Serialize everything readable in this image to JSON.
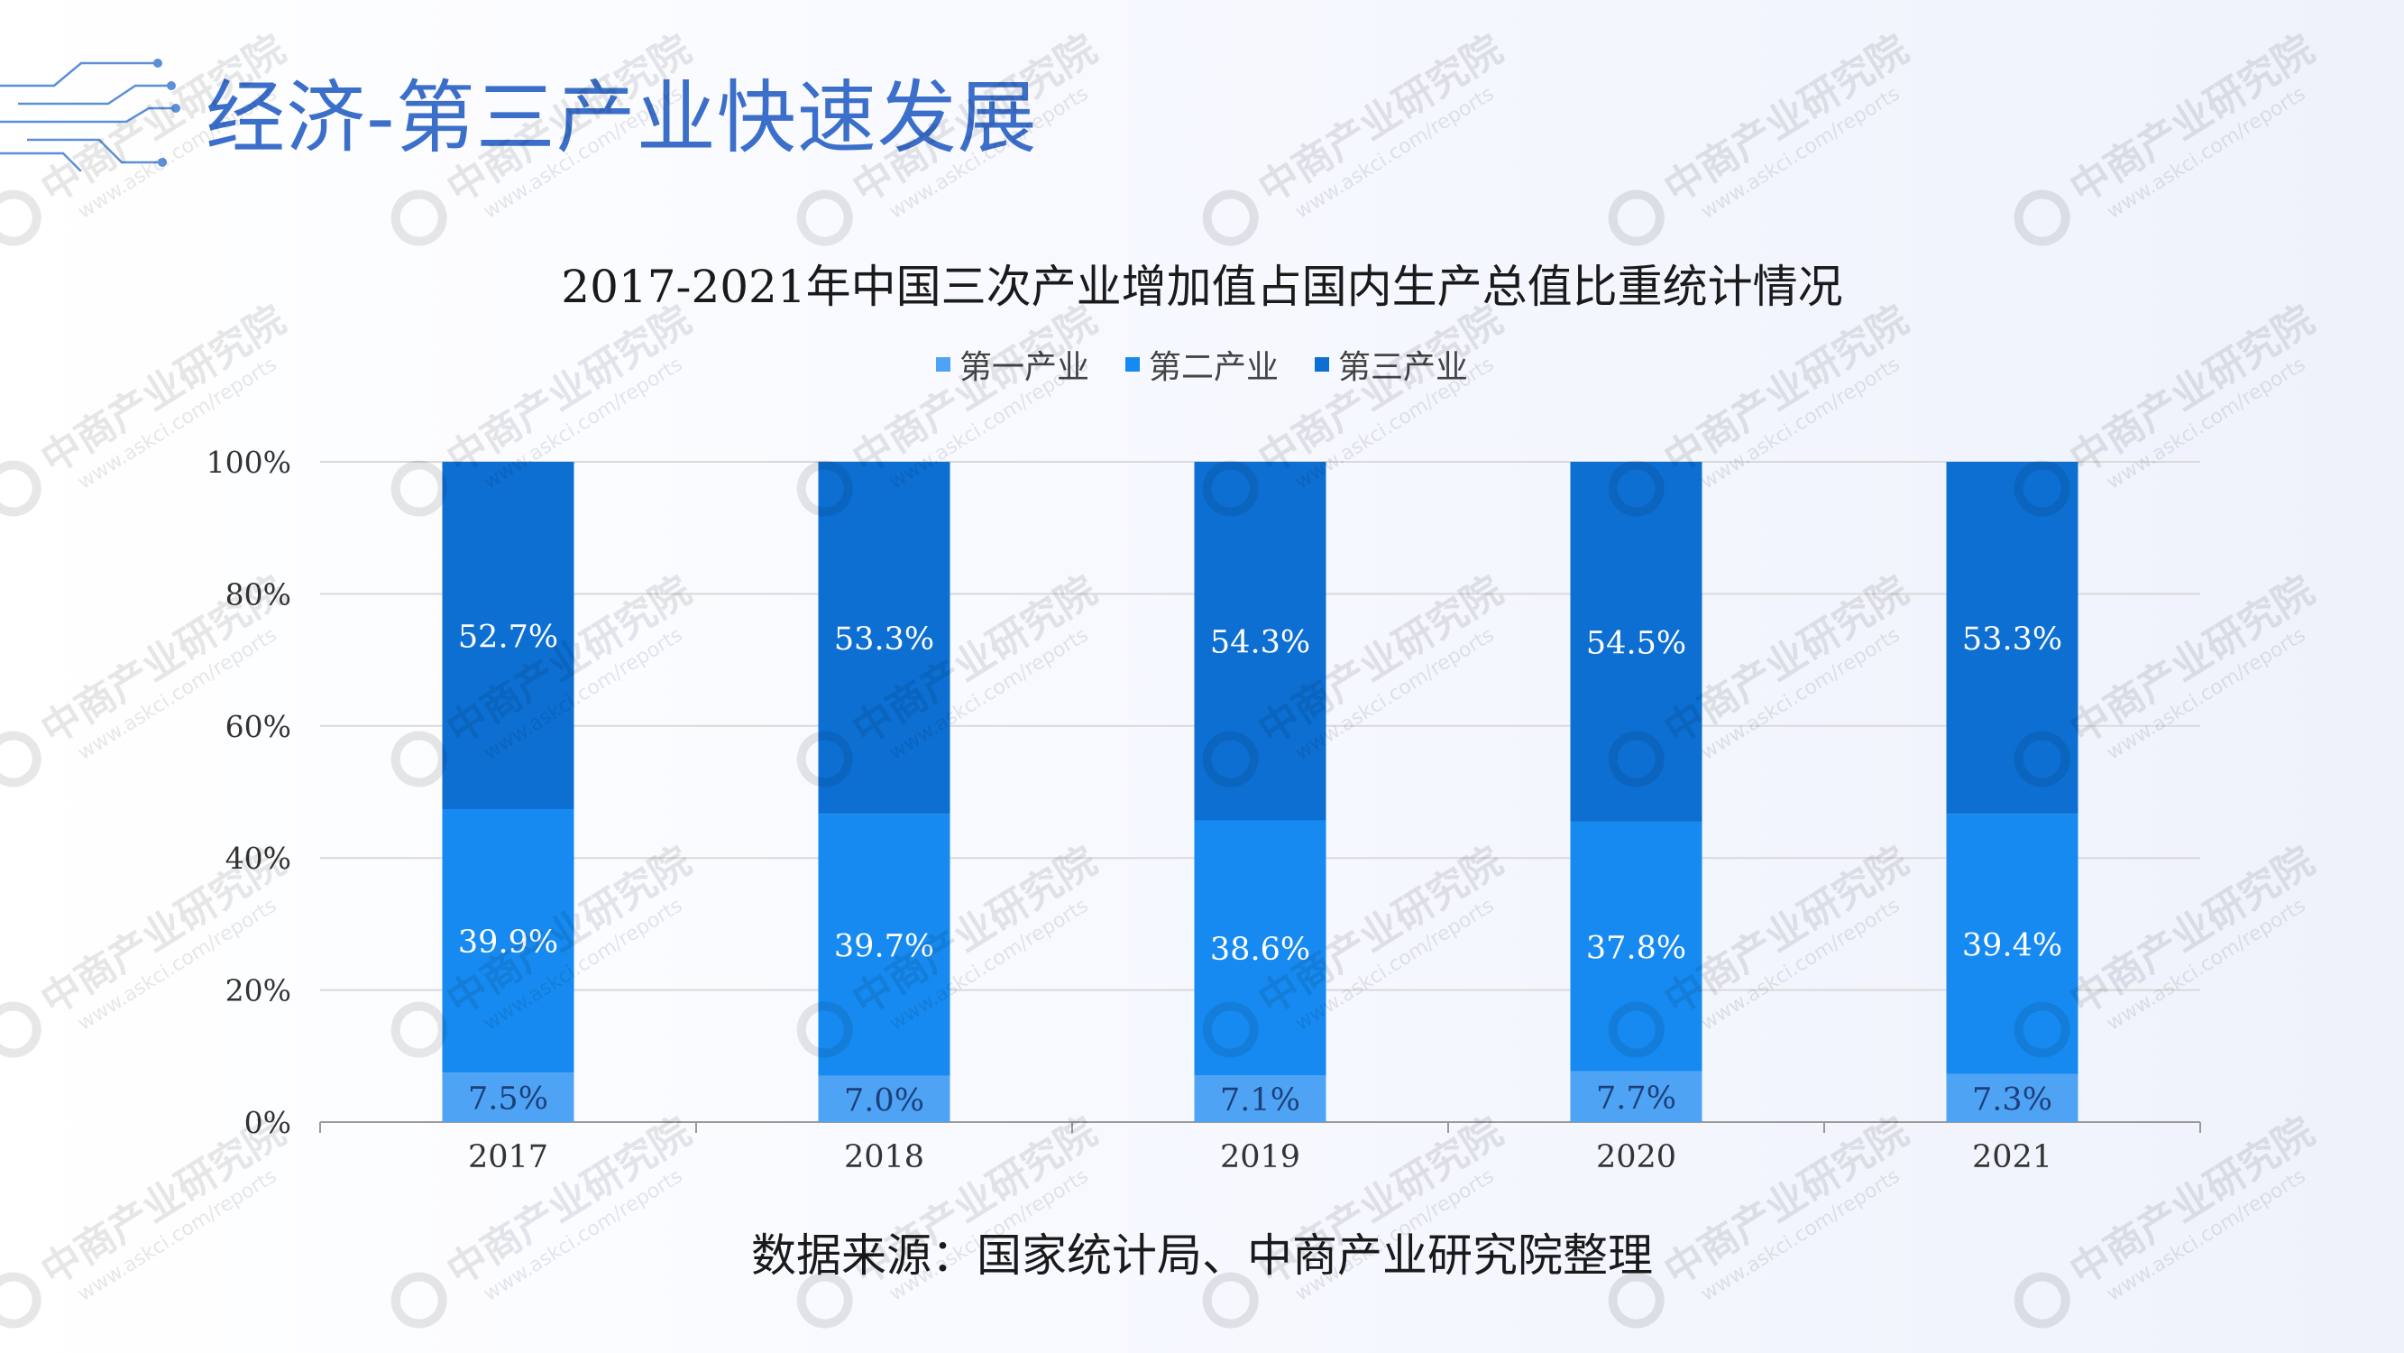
{
  "page": {
    "title": "经济-第三产业快速发展",
    "source": "数据来源：国家统计局、中商产业研究院整理",
    "watermark_text": "中商产业研究院",
    "watermark_url": "www.askci.com/reports"
  },
  "colors": {
    "title": "#3b6fc9",
    "primary": "#4fa3f5",
    "secondary": "#168af0",
    "tertiary": "#0d6fd2",
    "grid": "#d9d9d9",
    "axis": "#9a9a9a"
  },
  "chart_data": {
    "type": "bar",
    "stacked": true,
    "title": "2017-2021年中国三次产业增加值占国内生产总值比重统计情况",
    "categories": [
      "2017",
      "2018",
      "2019",
      "2020",
      "2021"
    ],
    "series": [
      {
        "name": "第一产业",
        "values": [
          7.5,
          7.0,
          7.1,
          7.7,
          7.3
        ],
        "labels": [
          "7.5%",
          "7.0%",
          "7.1%",
          "7.7%",
          "7.3%"
        ]
      },
      {
        "name": "第二产业",
        "values": [
          39.9,
          39.7,
          38.6,
          37.8,
          39.4
        ],
        "labels": [
          "39.9%",
          "39.7%",
          "38.6%",
          "37.8%",
          "39.4%"
        ]
      },
      {
        "name": "第三产业",
        "values": [
          52.7,
          53.3,
          54.3,
          54.5,
          53.3
        ],
        "labels": [
          "52.7%",
          "53.3%",
          "54.3%",
          "54.5%",
          "53.3%"
        ]
      }
    ],
    "ylim": [
      0,
      100
    ],
    "yticks": [
      "0%",
      "20%",
      "40%",
      "60%",
      "80%",
      "100%"
    ],
    "grid": true,
    "legend_position": "top-center"
  }
}
